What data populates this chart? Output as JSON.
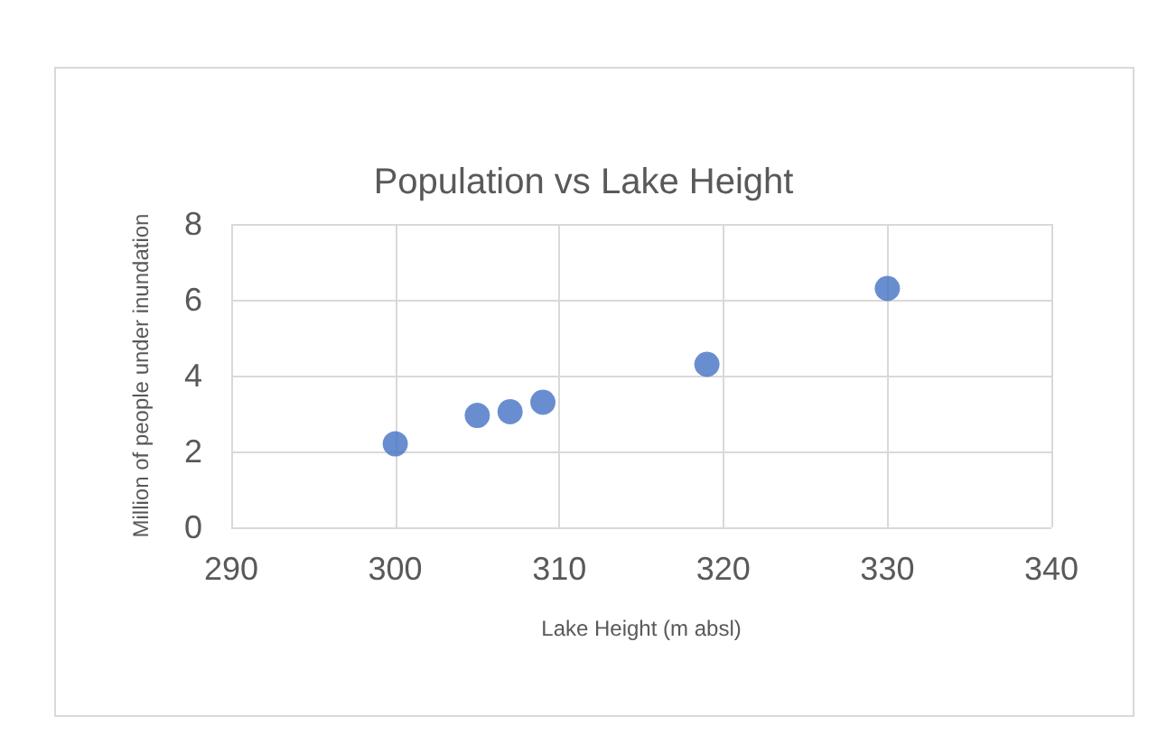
{
  "chart_data": {
    "type": "scatter",
    "title": "Population vs Lake Height",
    "xlabel": "Lake Height (m absl)",
    "ylabel": "Million of people under inundation",
    "x": [
      300,
      305,
      307,
      309,
      319,
      330
    ],
    "values": [
      2.2,
      2.95,
      3.05,
      3.3,
      4.3,
      6.3
    ],
    "color": "#4472c4",
    "marker": "circle",
    "xlim": [
      290,
      340
    ],
    "xticks": [
      290,
      300,
      310,
      320,
      330,
      340
    ],
    "ylim": [
      0,
      8
    ],
    "yticks": [
      0,
      2,
      4,
      6,
      8
    ],
    "grid": true
  }
}
